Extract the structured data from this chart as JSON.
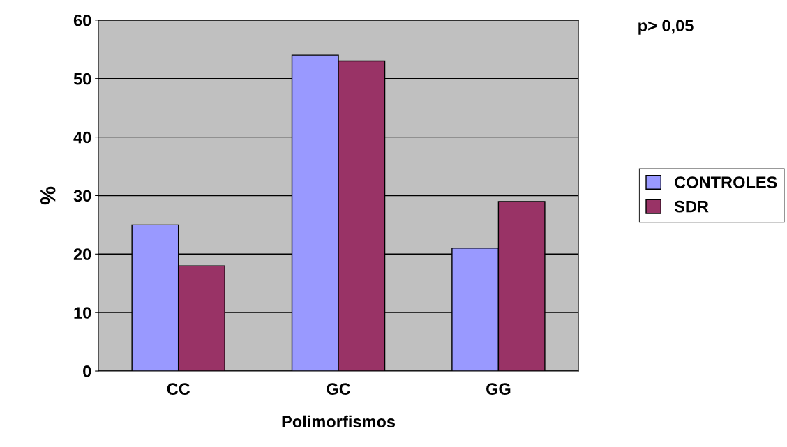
{
  "chart_data": {
    "type": "bar",
    "xlabel": "Polimorfismos",
    "ylabel": "%",
    "categories": [
      "CC",
      "GC",
      "GG"
    ],
    "series": [
      {
        "name": "CONTROLES",
        "color": "#9999ff",
        "values": [
          25,
          54,
          21
        ]
      },
      {
        "name": "SDR",
        "color": "#993366",
        "values": [
          18,
          53,
          29
        ]
      }
    ],
    "ylim": [
      0,
      60
    ],
    "yticks": [
      0,
      10,
      20,
      30,
      40,
      50,
      60
    ],
    "grid": "y",
    "legend": "right",
    "annotations": [
      "p> 0,05"
    ]
  }
}
